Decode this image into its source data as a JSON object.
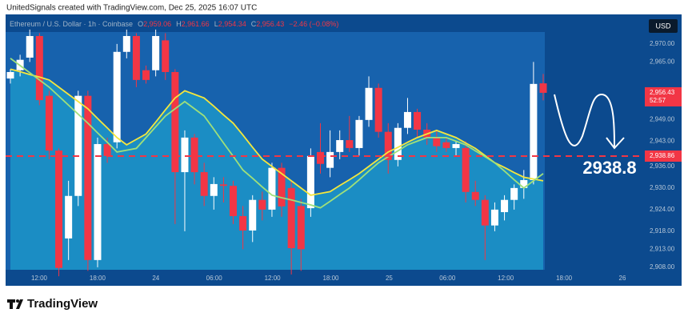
{
  "header": {
    "credit": "UnitedSignals created with TradingView.com, Dec 25, 2025 16:07 UTC"
  },
  "legend": {
    "symbol": "Ethereum / U.S. Dollar · 1h · Coinbase",
    "items": [
      {
        "label": "O",
        "value": "2,959.06"
      },
      {
        "label": "H",
        "value": "2,961.66"
      },
      {
        "label": "L",
        "value": "2,954.34"
      },
      {
        "label": "C",
        "value": "2,956.43"
      }
    ],
    "change": "−2.46 (−0.08%)"
  },
  "currency": "USD",
  "annotation": "2938.8",
  "footer": {
    "logo": "TradingView"
  },
  "chart_data": {
    "type": "candlestick",
    "up_color": "#ffffff",
    "down_color": "#f23645",
    "open": [
      2960.4,
      2962.7,
      2966.2,
      2972.2,
      2955.6,
      2940.4,
      2916,
      2927.8,
      2955.6,
      2910,
      2942.2,
      2942.7,
      2967.8,
      2972.2,
      2962.7,
      2962.7,
      2971,
      2962.2,
      2934.4,
      2944,
      2934.4,
      2927.8,
      2931,
      2930.6,
      2922.2,
      2918.2,
      2926.7,
      2924,
      2935.6,
      2930,
      2925,
      2924.4,
      2940,
      2935.6,
      2940,
      2943.3,
      2941.1,
      2948.9,
      2957.8,
      2945.6,
      2937.8,
      2946.7,
      2951.1,
      2946.2,
      2944,
      2942.7,
      2941.1,
      2941.1,
      2928.9,
      2926.7,
      2919.6,
      2923.3,
      2926.7,
      2930,
      2932.2,
      2959.06
    ],
    "high": [
      2963,
      2967,
      2974,
      2973,
      2957,
      2941,
      2932,
      2957,
      2957,
      2944,
      2944,
      2970,
      2974,
      2973,
      2964,
      2974,
      2973,
      2963,
      2946,
      2945,
      2937,
      2933,
      2933,
      2932,
      2925,
      2928,
      2929,
      2937,
      2937,
      2932,
      2927,
      2941,
      2948,
      2946,
      2946,
      2950,
      2950,
      2961,
      2959,
      2948,
      2948,
      2955,
      2952,
      2948,
      2946,
      2944,
      2943,
      2943,
      2932,
      2928,
      2926,
      2928,
      2931,
      2935,
      2965,
      2961.66
    ],
    "low": [
      2959,
      2961,
      2965,
      2953,
      2938,
      2905.5,
      2910,
      2925,
      2907,
      2908,
      2937,
      2941,
      2966,
      2958,
      2959,
      2961,
      2960,
      2920,
      2918,
      2931,
      2925,
      2924,
      2926,
      2920,
      2913,
      2915,
      2921,
      2922,
      2922,
      2906,
      2907,
      2922,
      2934,
      2933,
      2938,
      2940,
      2939,
      2947,
      2944,
      2934,
      2936,
      2945,
      2944,
      2942,
      2940,
      2940,
      2939,
      2926,
      2925,
      2910,
      2918,
      2921,
      2924,
      2927,
      2931,
      2954.34
    ],
    "close": [
      2962.2,
      2965.6,
      2972.2,
      2954.4,
      2940.4,
      2907.8,
      2927.8,
      2955.6,
      2910,
      2942.2,
      2938.9,
      2967.8,
      2972.2,
      2960,
      2960,
      2972.2,
      2962.2,
      2934.4,
      2944,
      2934.4,
      2927.8,
      2931.1,
      2930.6,
      2922.2,
      2918.2,
      2926.7,
      2924,
      2935.6,
      2924.9,
      2913.3,
      2913,
      2938.9,
      2936.7,
      2940,
      2943.3,
      2941.1,
      2948.9,
      2957.8,
      2945.6,
      2937.8,
      2946.7,
      2951.1,
      2946.2,
      2944,
      2941.6,
      2941.1,
      2942.2,
      2928.9,
      2926.7,
      2919.6,
      2924,
      2926.7,
      2930,
      2932.2,
      2958.9,
      2956.43
    ],
    "series": [
      {
        "color": "#f5e63c",
        "values": [
          2963,
          2962.3,
          2961.5,
          2960.8,
          2960,
          2958,
          2956,
          2954,
          2952,
          2949.3,
          2946.7,
          2944,
          2942,
          2943.5,
          2945,
          2948.3,
          2951.7,
          2955,
          2957,
          2956,
          2955,
          2952.7,
          2950.3,
          2948,
          2944.7,
          2941.3,
          2938,
          2936,
          2934,
          2932,
          2930,
          2928,
          2928.5,
          2929,
          2930.7,
          2932.3,
          2934,
          2936,
          2938,
          2940,
          2941.3,
          2942.7,
          2944,
          2945,
          2946,
          2945,
          2944,
          2942.5,
          2941,
          2939,
          2937,
          2935.7,
          2934.3,
          2933,
          2932.5,
          2932
        ]
      },
      {
        "color": "#9fe07a",
        "values": [
          2966,
          2964,
          2962,
          2960,
          2958,
          2955.5,
          2953,
          2950.5,
          2948,
          2945.3,
          2942.7,
          2940,
          2940.5,
          2941,
          2944,
          2947,
          2950,
          2952,
          2954,
          2952,
          2950,
          2946.3,
          2942.5,
          2938.8,
          2935,
          2932.7,
          2930.3,
          2928,
          2927.3,
          2926.7,
          2926,
          2925.3,
          2924.5,
          2926.3,
          2928.2,
          2930,
          2932.3,
          2934.7,
          2937,
          2938.7,
          2940.3,
          2942,
          2943,
          2944,
          2944,
          2944,
          2943,
          2942,
          2940.3,
          2938.7,
          2937,
          2934.7,
          2932.3,
          2930,
          2932,
          2934
        ]
      }
    ],
    "ylim": [
      2907.3,
      2978.2
    ],
    "yticks": [
      {
        "value": 2970,
        "label": "2,970.00"
      },
      {
        "value": 2965,
        "label": "2,965.00"
      },
      {
        "value": 2949,
        "label": "2,949.00"
      },
      {
        "value": 2943,
        "label": "2,943.00"
      },
      {
        "value": 2936,
        "label": "2,936.00"
      },
      {
        "value": 2930,
        "label": "2,930.00"
      },
      {
        "value": 2924,
        "label": "2,924.00"
      },
      {
        "value": 2918,
        "label": "2,918.00"
      },
      {
        "value": 2913,
        "label": "2,913.00"
      },
      {
        "value": 2908,
        "label": "2,908.00"
      }
    ],
    "xtick_labels": [
      "12:00",
      "18:00",
      "24",
      "06:00",
      "12:00",
      "18:00",
      "25",
      "06:00",
      "12:00",
      "18:00",
      "26"
    ],
    "last_price": {
      "value": 2956.43,
      "label": "2,956.43",
      "countdown": "52:57"
    },
    "price_line": {
      "value": 2938.86,
      "label": "2,938.86",
      "color": "#f23645"
    }
  }
}
